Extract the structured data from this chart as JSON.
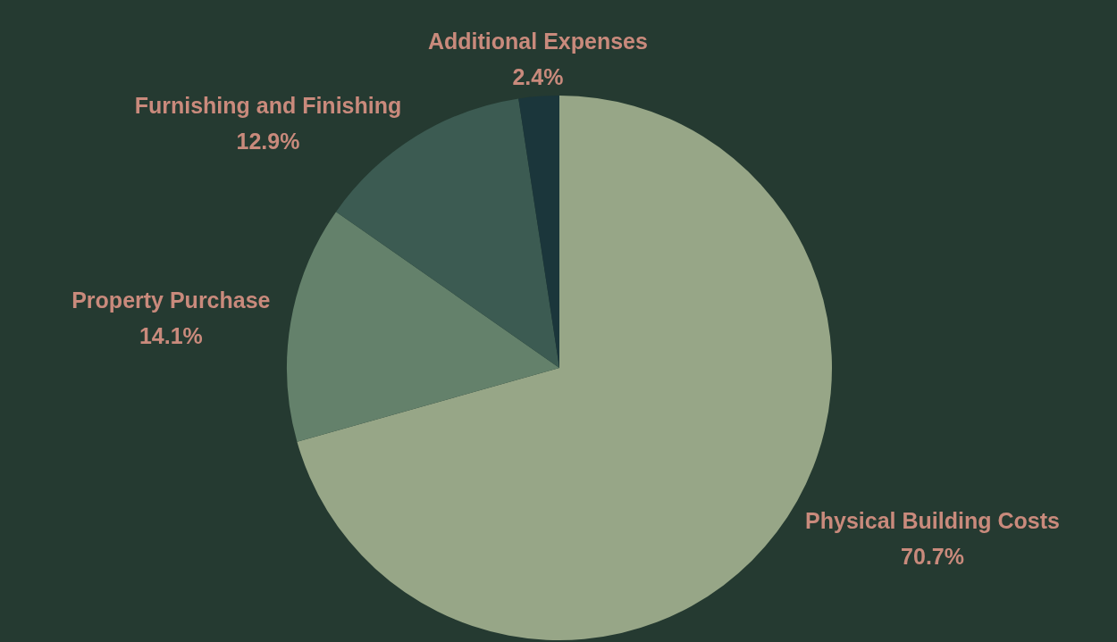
{
  "chart_data": {
    "type": "pie",
    "categories": [
      "Physical Building Costs",
      "Property Purchase",
      "Furnishing and Finishing",
      "Additional Expenses"
    ],
    "values": [
      70.7,
      14.1,
      12.9,
      2.4
    ],
    "value_labels": [
      "70.7%",
      "14.1%",
      "12.9%",
      "2.4%"
    ],
    "colors": [
      "#97a687",
      "#64816b",
      "#3c5b52",
      "#1b363b"
    ],
    "data_labels": true,
    "legend": false
  }
}
